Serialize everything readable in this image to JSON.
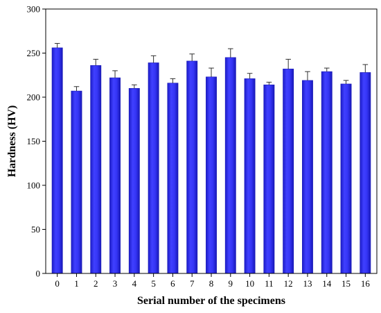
{
  "chart_data": {
    "type": "bar",
    "title": "",
    "xlabel": "Serial number of the specimens",
    "ylabel": "Hardness (HV)",
    "categories": [
      "0",
      "1",
      "2",
      "3",
      "4",
      "5",
      "6",
      "7",
      "8",
      "9",
      "10",
      "11",
      "12",
      "13",
      "14",
      "15",
      "16"
    ],
    "values": [
      256,
      207,
      236,
      222,
      210,
      239,
      216,
      241,
      223,
      245,
      221,
      214,
      232,
      219,
      229,
      215,
      228
    ],
    "errors": [
      5,
      5,
      7,
      8,
      4,
      8,
      5,
      8,
      10,
      10,
      6,
      3,
      11,
      10,
      4,
      4,
      9
    ],
    "ylim": [
      0,
      300
    ],
    "yticks": [
      0,
      50,
      100,
      150,
      200,
      250,
      300
    ],
    "bar_color": "#2f2ff0",
    "bar_edge_color": "#1a1ab5",
    "error_color": "#303030",
    "grid": false,
    "legend": "none"
  }
}
